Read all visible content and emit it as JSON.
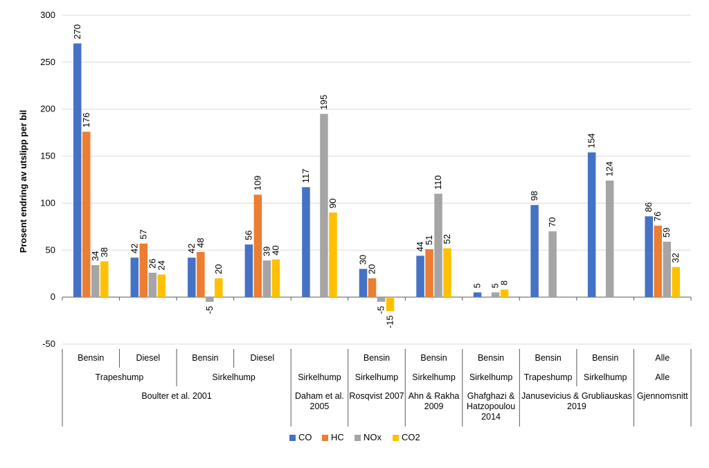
{
  "chart_data": {
    "type": "bar",
    "ylabel": "Prosent endring av utslipp per bil",
    "ylim": [
      -50,
      300
    ],
    "yticks": [
      -50,
      0,
      50,
      100,
      150,
      200,
      250,
      300
    ],
    "grid": true,
    "legend_position": "bottom",
    "colors": {
      "CO": "#4472C4",
      "HC": "#ED7D31",
      "NOx": "#A5A5A5",
      "CO2": "#FFC000"
    },
    "series_names": [
      "CO",
      "HC",
      "NOx",
      "CO2"
    ],
    "groups": [
      {
        "level1": "Bensin",
        "level2": "Trapeshump",
        "level3": "Boulter et al. 2001",
        "values": {
          "CO": 270,
          "HC": 176,
          "NOx": 34,
          "CO2": 38
        }
      },
      {
        "level1": "Diesel",
        "level2": "Trapeshump",
        "level3": "Boulter et al. 2001",
        "values": {
          "CO": 42,
          "HC": 57,
          "NOx": 26,
          "CO2": 24
        }
      },
      {
        "level1": "Bensin",
        "level2": "Sirkelhump",
        "level3": "Boulter et al. 2001",
        "values": {
          "CO": 42,
          "HC": 48,
          "NOx": -5,
          "CO2": 20
        }
      },
      {
        "level1": "Diesel",
        "level2": "Sirkelhump",
        "level3": "Boulter et al. 2001",
        "values": {
          "CO": 56,
          "HC": 109,
          "NOx": 39,
          "CO2": 40
        }
      },
      {
        "level1": "",
        "level2": "Sirkelhump",
        "level3": "Daham et al. 2005",
        "values": {
          "CO": 117,
          "HC": null,
          "NOx": 195,
          "CO2": 90
        }
      },
      {
        "level1": "Bensin",
        "level2": "Sirkelhump",
        "level3": "Rosqvist 2007",
        "values": {
          "CO": 30,
          "HC": 20,
          "NOx": -5,
          "CO2": -15
        }
      },
      {
        "level1": "Bensin",
        "level2": "Sirkelhump",
        "level3": "Ahn & Rakha 2009",
        "values": {
          "CO": 44,
          "HC": 51,
          "NOx": 110,
          "CO2": 52
        }
      },
      {
        "level1": "Bensin",
        "level2": "Sirkelhump",
        "level3": "Ghafghazi & Hatzopoulou 2014",
        "values": {
          "CO": 5,
          "HC": null,
          "NOx": 5,
          "CO2": 8
        }
      },
      {
        "level1": "Bensin",
        "level2": "Trapeshump",
        "level3": "Janusevicius & Grubliauskas 2019",
        "values": {
          "CO": 98,
          "HC": null,
          "NOx": 70,
          "CO2": null
        }
      },
      {
        "level1": "Bensin",
        "level2": "Sirkelhump",
        "level3": "Janusevicius & Grubliauskas 2019",
        "values": {
          "CO": 154,
          "HC": null,
          "NOx": 124,
          "CO2": null
        }
      },
      {
        "level1": "Alle",
        "level2": "Alle",
        "level3": "Gjennomsnitt",
        "values": {
          "CO": 86,
          "HC": 76,
          "NOx": 59,
          "CO2": 32
        }
      }
    ],
    "level2_spans": [
      {
        "label": "Trapeshump",
        "from": 0,
        "to": 1
      },
      {
        "label": "Sirkelhump",
        "from": 2,
        "to": 3
      },
      {
        "label": "Sirkelhump",
        "from": 4,
        "to": 4
      },
      {
        "label": "Sirkelhump",
        "from": 5,
        "to": 5
      },
      {
        "label": "Sirkelhump",
        "from": 6,
        "to": 6
      },
      {
        "label": "Sirkelhump",
        "from": 7,
        "to": 7
      },
      {
        "label": "Trapeshump",
        "from": 8,
        "to": 8
      },
      {
        "label": "Sirkelhump",
        "from": 9,
        "to": 9
      },
      {
        "label": "Alle",
        "from": 10,
        "to": 10
      }
    ],
    "level3_spans": [
      {
        "label": "Boulter et al. 2001",
        "lines": [
          "Boulter et al. 2001"
        ],
        "from": 0,
        "to": 3
      },
      {
        "label": "Daham et al. 2005",
        "lines": [
          "Daham et al.",
          "2005"
        ],
        "from": 4,
        "to": 4
      },
      {
        "label": "Rosqvist 2007",
        "lines": [
          "Rosqvist 2007"
        ],
        "from": 5,
        "to": 5
      },
      {
        "label": "Ahn & Rakha 2009",
        "lines": [
          "Ahn & Rakha",
          "2009"
        ],
        "from": 6,
        "to": 6
      },
      {
        "label": "Ghafghazi & Hatzopoulou 2014",
        "lines": [
          "Ghafghazi &",
          "Hatzopoulou",
          "2014"
        ],
        "from": 7,
        "to": 7
      },
      {
        "label": "Janusevicius & Grubliauskas 2019",
        "lines": [
          "Janusevicius & Grubliauskas",
          "2019"
        ],
        "from": 8,
        "to": 9
      },
      {
        "label": "Gjennomsnitt",
        "lines": [
          "Gjennomsnitt"
        ],
        "from": 10,
        "to": 10
      }
    ]
  }
}
